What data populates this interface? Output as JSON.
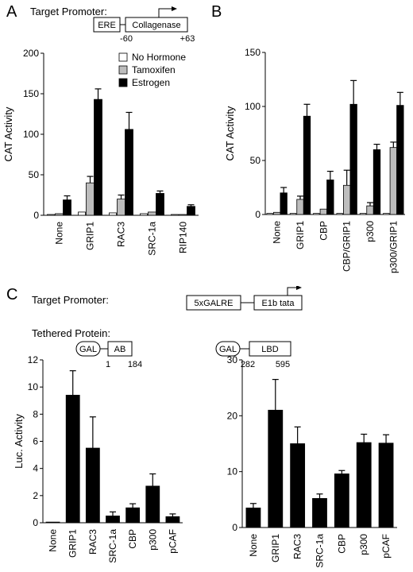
{
  "panels": {
    "A": {
      "letter": "A"
    },
    "B": {
      "letter": "B"
    },
    "C": {
      "letter": "C"
    }
  },
  "promoter_top": {
    "label": "Target Promoter:",
    "box1": "ERE",
    "box2": "Collagenase",
    "pos_left": "-60",
    "pos_right": "+63"
  },
  "promoter_c": {
    "label": "Target Promoter:",
    "box1": "5xGALRE",
    "box2": "E1b tata"
  },
  "tethered": {
    "label": "Tethered Protein:",
    "left": {
      "gal": "GAL",
      "domain": "AB",
      "start": "1",
      "end": "184"
    },
    "right": {
      "gal": "GAL",
      "domain": "LBD",
      "start": "282",
      "end": "595"
    }
  },
  "chart_data": [
    {
      "type": "bar",
      "panel": "A",
      "ylabel": "CAT Activity",
      "ylim": [
        0,
        200
      ],
      "yticks": [
        "0",
        "50",
        "100",
        "150",
        "200"
      ],
      "categories": [
        "None",
        "GRIP1",
        "RAC3",
        "SRC-1a",
        "RIP140"
      ],
      "series": [
        {
          "name": "No Hormone",
          "color": "#ffffff",
          "values": [
            1,
            4,
            3,
            2,
            1
          ],
          "errors": [
            0,
            0,
            0,
            0,
            0
          ]
        },
        {
          "name": "Tamoxifen",
          "color": "#bdbdbd",
          "values": [
            2,
            40,
            20,
            4,
            1
          ],
          "errors": [
            0,
            8,
            5,
            0,
            0
          ]
        },
        {
          "name": "Estrogen",
          "color": "#000000",
          "values": [
            19,
            143,
            106,
            27,
            11
          ],
          "errors": [
            5,
            13,
            21,
            3,
            2
          ]
        }
      ],
      "legend": "top-right"
    },
    {
      "type": "bar",
      "panel": "B",
      "ylabel": "CAT Activity",
      "ylim": [
        0,
        150
      ],
      "yticks": [
        "0",
        "50",
        "100",
        "150"
      ],
      "categories": [
        "None",
        "GRIP1",
        "CBP",
        "CBP/GRIP1",
        "p300",
        "p300/GRIP1"
      ],
      "series": [
        {
          "name": "No Hormone",
          "color": "#ffffff",
          "values": [
            1,
            1,
            1,
            1,
            1,
            1
          ],
          "errors": [
            0,
            0,
            0,
            0,
            0,
            0
          ]
        },
        {
          "name": "Tamoxifen",
          "color": "#bdbdbd",
          "values": [
            2,
            14,
            5,
            27,
            8,
            62
          ],
          "errors": [
            0,
            3,
            0,
            14,
            3,
            5
          ]
        },
        {
          "name": "Estrogen",
          "color": "#000000",
          "values": [
            20,
            91,
            32,
            102,
            60,
            101
          ],
          "errors": [
            5,
            11,
            8,
            22,
            5,
            12
          ]
        }
      ]
    },
    {
      "type": "bar",
      "panel": "C-left",
      "ylabel": "Luc. Activity",
      "ylim": [
        0,
        12
      ],
      "yticks": [
        "0",
        "2",
        "4",
        "6",
        "8",
        "10",
        "12"
      ],
      "categories": [
        "None",
        "GRIP1",
        "RAC3",
        "SRC-1a",
        "CBP",
        "p300",
        "pCAF"
      ],
      "values": [
        0.05,
        9.4,
        5.5,
        0.5,
        1.1,
        2.7,
        0.45
      ],
      "errors": [
        0,
        1.8,
        2.3,
        0.3,
        0.3,
        0.9,
        0.2
      ]
    },
    {
      "type": "bar",
      "panel": "C-right",
      "ylabel": "",
      "ylim": [
        0,
        30
      ],
      "yticks": [
        "0",
        "10",
        "20",
        "30"
      ],
      "categories": [
        "None",
        "GRIP1",
        "RAC3",
        "SRC-1a",
        "CBP",
        "p300",
        "pCAF"
      ],
      "values": [
        3.5,
        21,
        15,
        5.2,
        9.6,
        15.2,
        15.1
      ],
      "errors": [
        0.8,
        5.5,
        3,
        0.8,
        0.6,
        1.5,
        1.5
      ]
    }
  ]
}
